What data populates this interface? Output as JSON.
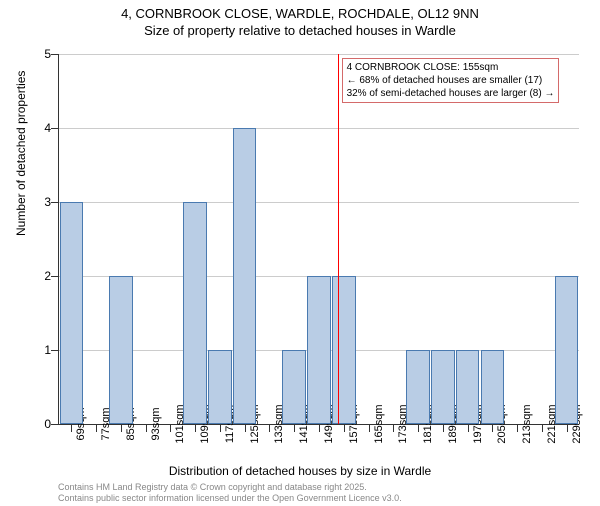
{
  "title_main": "4, CORNBROOK CLOSE, WARDLE, ROCHDALE, OL12 9NN",
  "title_sub": "Size of property relative to detached houses in Wardle",
  "y_axis": {
    "title": "Number of detached properties",
    "min": 0,
    "max": 5,
    "ticks": [
      0,
      1,
      2,
      3,
      4,
      5
    ]
  },
  "x_axis": {
    "title": "Distribution of detached houses by size in Wardle",
    "categories": [
      "69sqm",
      "77sqm",
      "85sqm",
      "93sqm",
      "101sqm",
      "109sqm",
      "117sqm",
      "125sqm",
      "133sqm",
      "141sqm",
      "149sqm",
      "157sqm",
      "165sqm",
      "173sqm",
      "181sqm",
      "189sqm",
      "197sqm",
      "205sqm",
      "213sqm",
      "221sqm",
      "229sqm"
    ]
  },
  "histogram": {
    "type": "bar",
    "values": [
      3,
      0,
      2,
      0,
      0,
      3,
      1,
      4,
      0,
      1,
      2,
      2,
      0,
      0,
      1,
      1,
      1,
      1,
      0,
      0,
      2
    ],
    "bar_color": "#b9cde5",
    "bar_border": "#4a7ab0",
    "bar_width_ratio": 0.95
  },
  "marker": {
    "position_sqm": 155,
    "color": "#ff0000"
  },
  "annotation": {
    "line1": "4 CORNBROOK CLOSE: 155sqm",
    "line2": "← 68% of detached houses are smaller (17)",
    "line3": "32% of semi-detached houses are larger (8) →",
    "border_color": "#d46a6a"
  },
  "footer": {
    "line1": "Contains HM Land Registry data © Crown copyright and database right 2025.",
    "line2": "Contains public sector information licensed under the Open Government Licence v3.0."
  },
  "colors": {
    "background": "#ffffff",
    "grid": "#cccccc",
    "text": "#333333",
    "footer_text": "#888888"
  },
  "fonts": {
    "title_size": 13,
    "axis_title_size": 12,
    "tick_size": 11,
    "annotation_size": 10,
    "footer_size": 9
  }
}
